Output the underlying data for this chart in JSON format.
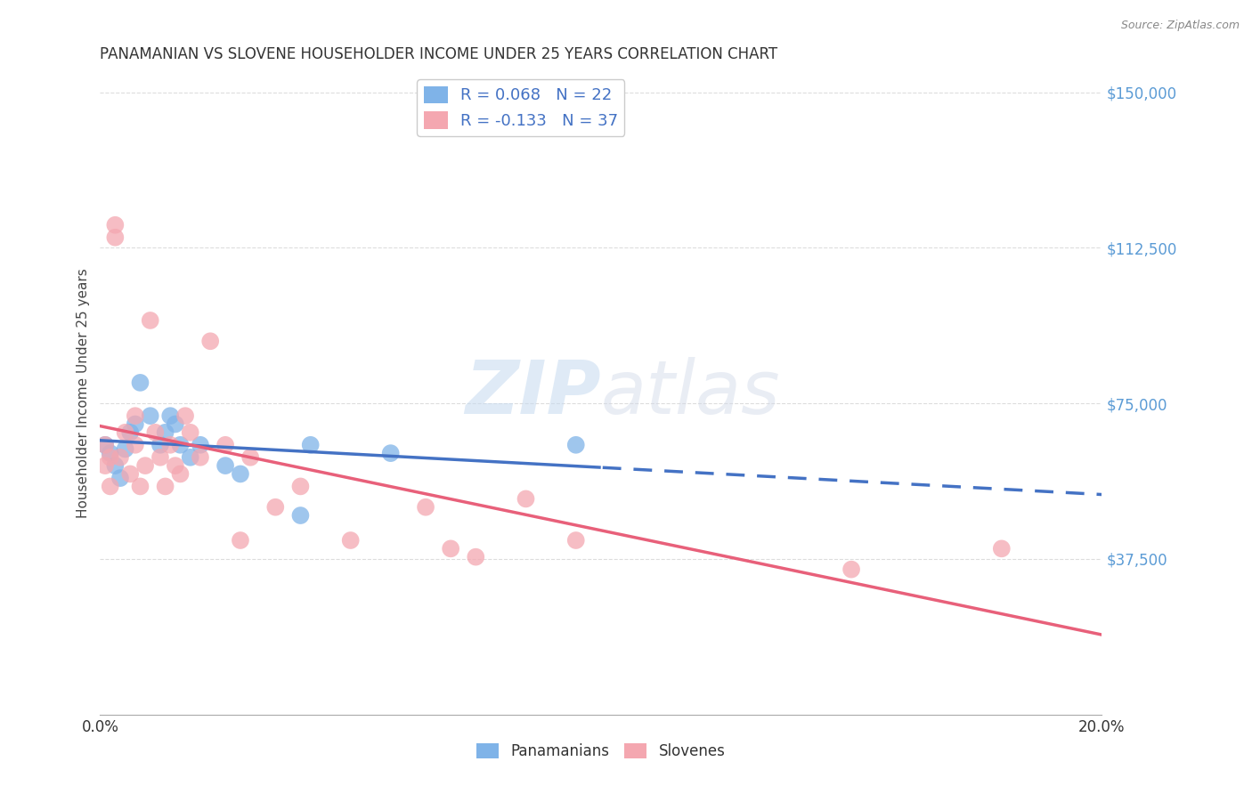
{
  "title": "PANAMANIAN VS SLOVENE HOUSEHOLDER INCOME UNDER 25 YEARS CORRELATION CHART",
  "source": "Source: ZipAtlas.com",
  "ylabel": "Householder Income Under 25 years",
  "xlim": [
    0.0,
    0.2
  ],
  "ylim": [
    0,
    155000
  ],
  "yticks": [
    37500,
    75000,
    112500,
    150000
  ],
  "ytick_labels": [
    "$37,500",
    "$75,000",
    "$112,500",
    "$150,000"
  ],
  "watermark_zip": "ZIP",
  "watermark_atlas": "atlas",
  "pan_color": "#7fb3e8",
  "slo_color": "#f4a7b0",
  "pan_line_color": "#4472C4",
  "slo_line_color": "#E8607A",
  "legend_label_pan": "R = 0.068   N = 22",
  "legend_label_slo": "R = -0.133   N = 37",
  "bottom_label_pan": "Panamanians",
  "bottom_label_slo": "Slovenes",
  "background_color": "#ffffff",
  "grid_color": "#dddddd",
  "pan_x": [
    0.001,
    0.002,
    0.003,
    0.004,
    0.005,
    0.006,
    0.007,
    0.008,
    0.01,
    0.012,
    0.013,
    0.014,
    0.015,
    0.016,
    0.018,
    0.02,
    0.025,
    0.028,
    0.04,
    0.042,
    0.058,
    0.095
  ],
  "pan_y": [
    65000,
    63000,
    60000,
    57000,
    64000,
    68000,
    70000,
    80000,
    72000,
    65000,
    68000,
    72000,
    70000,
    65000,
    62000,
    65000,
    60000,
    58000,
    48000,
    65000,
    63000,
    65000
  ],
  "slo_x": [
    0.001,
    0.001,
    0.002,
    0.002,
    0.003,
    0.003,
    0.004,
    0.005,
    0.006,
    0.007,
    0.007,
    0.008,
    0.009,
    0.01,
    0.011,
    0.012,
    0.013,
    0.014,
    0.015,
    0.016,
    0.017,
    0.018,
    0.02,
    0.022,
    0.025,
    0.028,
    0.03,
    0.035,
    0.04,
    0.05,
    0.065,
    0.07,
    0.075,
    0.085,
    0.095,
    0.15,
    0.18
  ],
  "slo_y": [
    65000,
    60000,
    55000,
    62000,
    115000,
    118000,
    62000,
    68000,
    58000,
    72000,
    65000,
    55000,
    60000,
    95000,
    68000,
    62000,
    55000,
    65000,
    60000,
    58000,
    72000,
    68000,
    62000,
    90000,
    65000,
    42000,
    62000,
    50000,
    55000,
    42000,
    50000,
    40000,
    38000,
    52000,
    42000,
    35000,
    40000
  ]
}
